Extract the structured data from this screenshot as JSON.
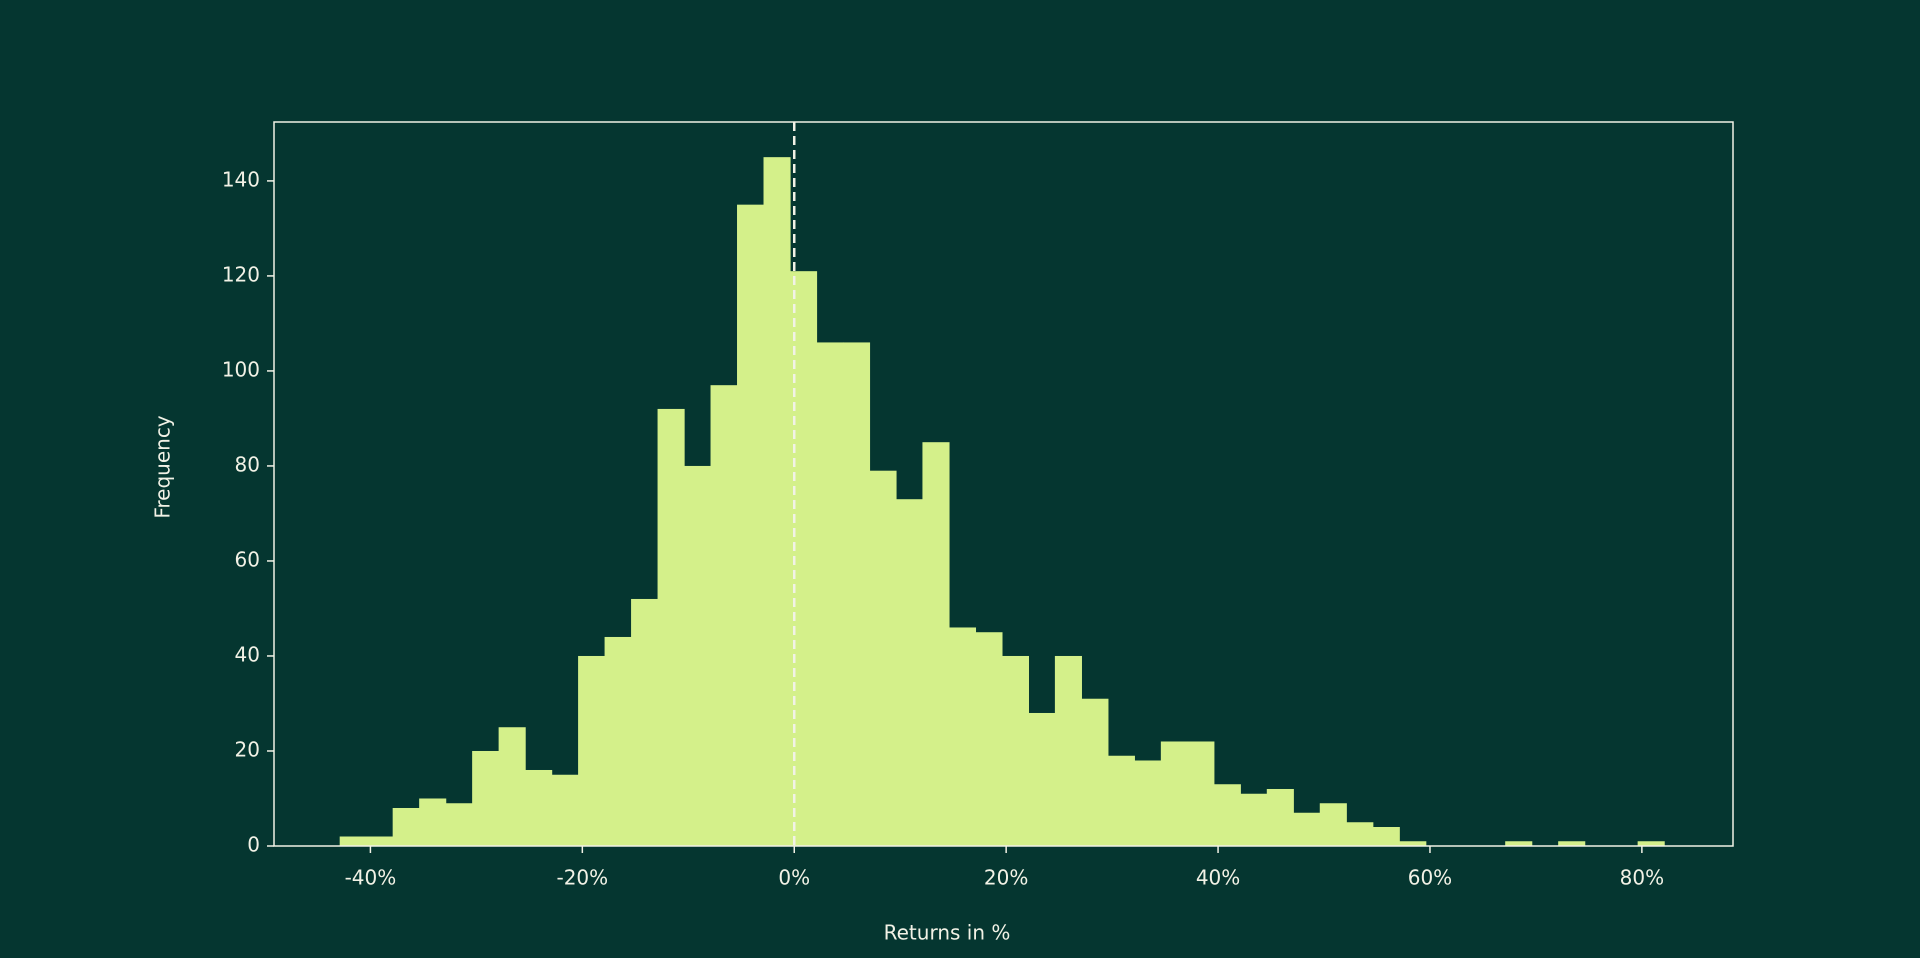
{
  "chart_data": {
    "type": "histogram",
    "x_label": "Returns in %",
    "y_label": "Frequency",
    "bins": [
      -42.9,
      -40.4,
      -37.9,
      -35.4,
      -32.9,
      -30.4,
      -27.9,
      -25.4,
      -22.9,
      -20.4,
      -17.9,
      -15.4,
      -12.9,
      -10.4,
      -7.9,
      -5.4,
      -2.9,
      -0.4,
      2.1,
      4.6,
      7.1,
      9.6,
      12.1,
      14.6,
      17.1,
      19.6,
      22.1,
      24.6,
      27.1,
      29.6,
      32.1,
      34.6,
      37.1,
      39.6,
      42.1,
      44.6,
      47.1,
      49.6,
      52.1,
      54.6,
      57.1,
      59.6,
      62.1,
      64.6,
      67.1,
      69.6,
      72.1,
      74.6,
      77.1,
      79.6,
      82.1
    ],
    "values": [
      2,
      2,
      8,
      10,
      9,
      20,
      25,
      16,
      15,
      40,
      44,
      52,
      92,
      80,
      97,
      135,
      145,
      121,
      106,
      106,
      79,
      73,
      85,
      46,
      45,
      40,
      28,
      40,
      31,
      19,
      18,
      22,
      22,
      13,
      11,
      12,
      7,
      9,
      5,
      4,
      1,
      0,
      0,
      0,
      1,
      0,
      1,
      0,
      0,
      1
    ],
    "color": "#d4f08a",
    "reference_line": {
      "x": 0
    },
    "xlim": [
      -49.1,
      88.6
    ],
    "ylim": [
      0,
      152.4
    ],
    "xticks": [
      {
        "value": -40,
        "label": "-40%"
      },
      {
        "value": -20,
        "label": "-20%"
      },
      {
        "value": 0,
        "label": "0%"
      },
      {
        "value": 20,
        "label": "20%"
      },
      {
        "value": 40,
        "label": "40%"
      },
      {
        "value": 60,
        "label": "60%"
      },
      {
        "value": 80,
        "label": "80%"
      }
    ],
    "yticks": [
      0,
      20,
      40,
      60,
      80,
      100,
      120,
      140
    ]
  }
}
